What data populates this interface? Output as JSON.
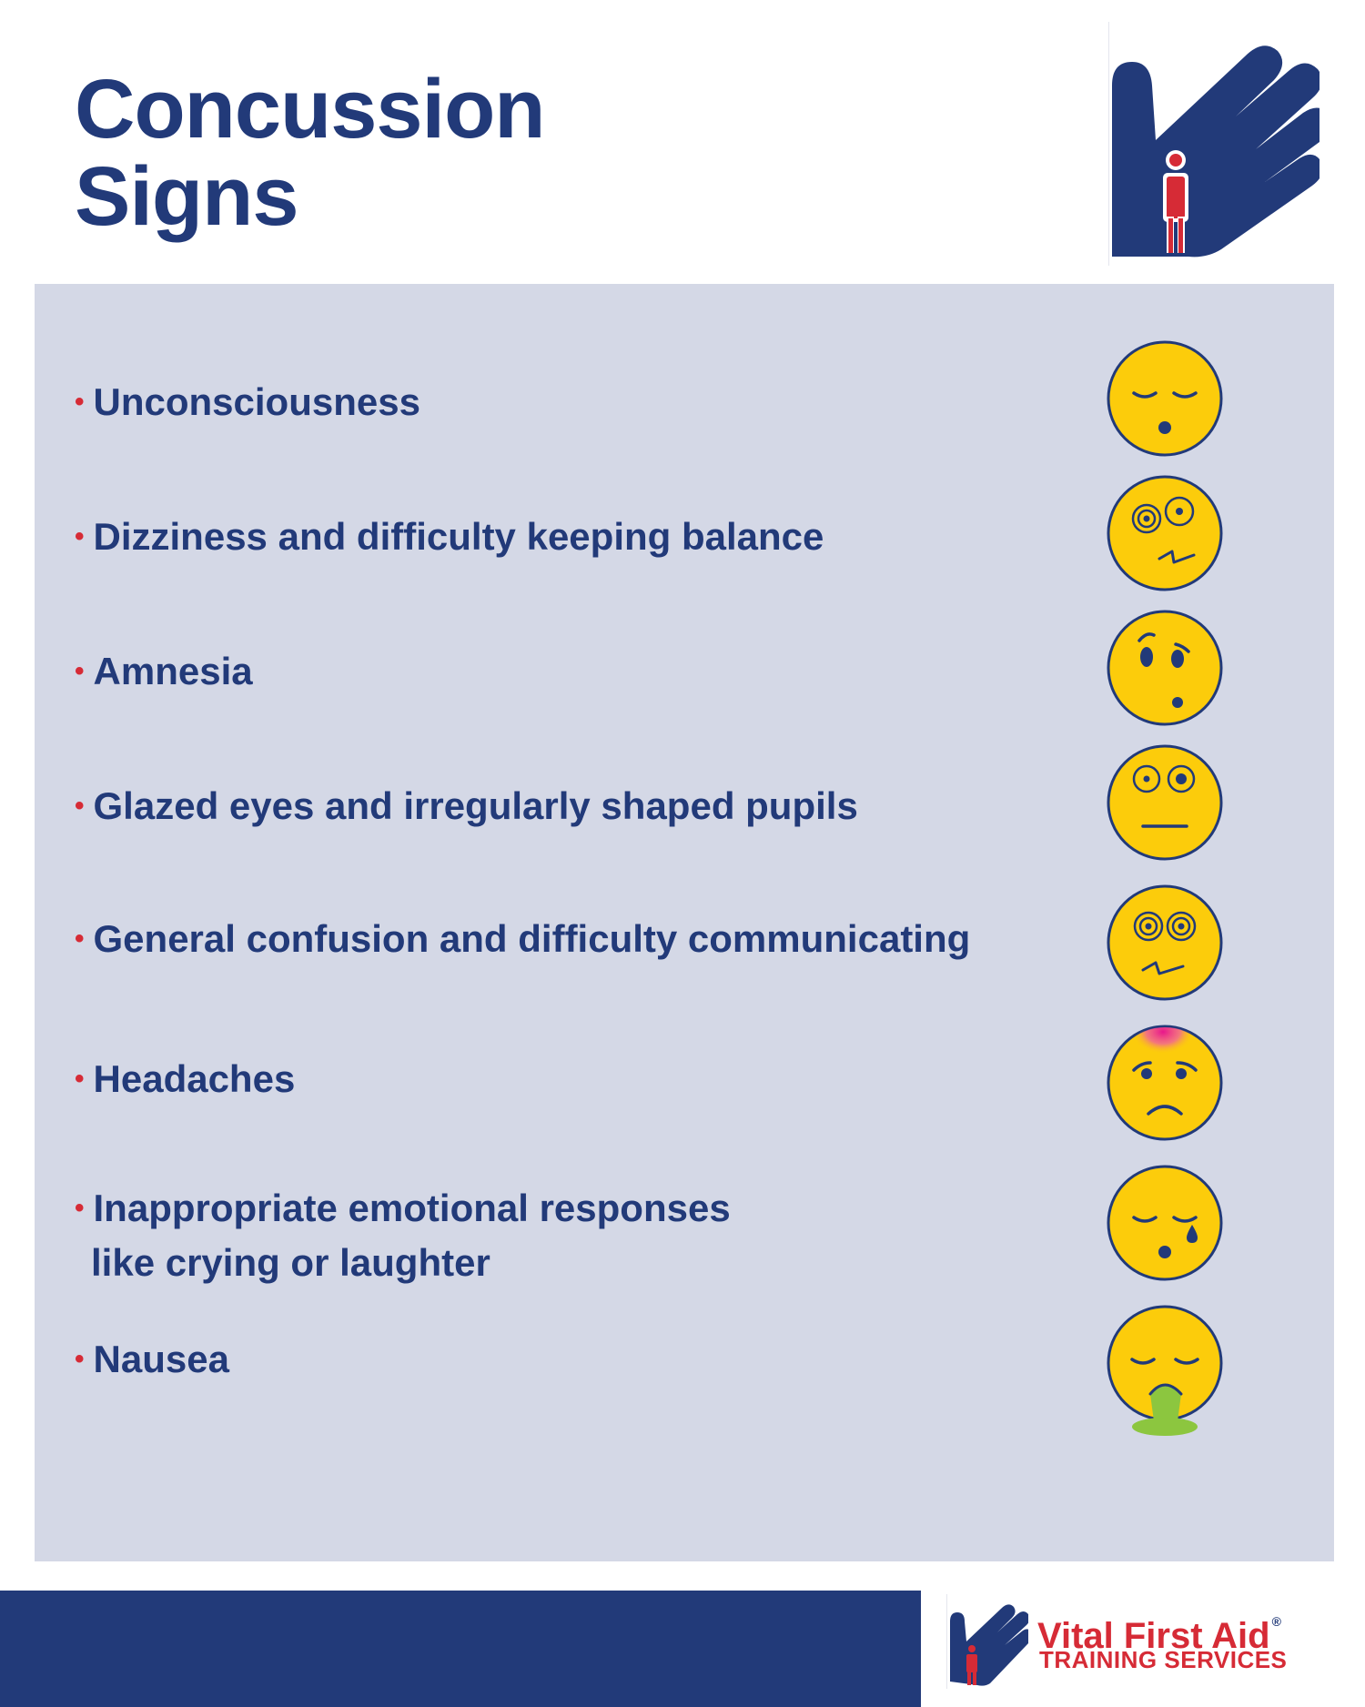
{
  "title": {
    "line1": "Concussion",
    "line2": "Signs"
  },
  "colors": {
    "navy": "#223a79",
    "red": "#d62b36",
    "panel": "#d4d8e6",
    "face": "#fccc0b"
  },
  "signs": [
    {
      "text": "Unconsciousness",
      "face_icon": "unconscious-face-icon"
    },
    {
      "text": "Dizziness and difficulty keeping balance",
      "face_icon": "dizzy-face-icon"
    },
    {
      "text": "Amnesia",
      "face_icon": "confused-face-icon"
    },
    {
      "text": "Glazed eyes and irregularly shaped pupils",
      "face_icon": "glazed-eyes-face-icon"
    },
    {
      "text": "General confusion and difficulty communicating",
      "face_icon": "spiral-eyes-face-icon"
    },
    {
      "text": "Headaches",
      "face_icon": "headache-face-icon"
    },
    {
      "text_line1": "Inappropriate emotional responses",
      "text_line2": "like crying or laughter",
      "face_icon": "crying-face-icon"
    },
    {
      "text": "Nausea",
      "face_icon": "nausea-face-icon"
    }
  ],
  "bullet": "•",
  "brand": {
    "name": "Vital First Aid",
    "registered": "®",
    "subtitle": "TRAINING SERVICES"
  }
}
